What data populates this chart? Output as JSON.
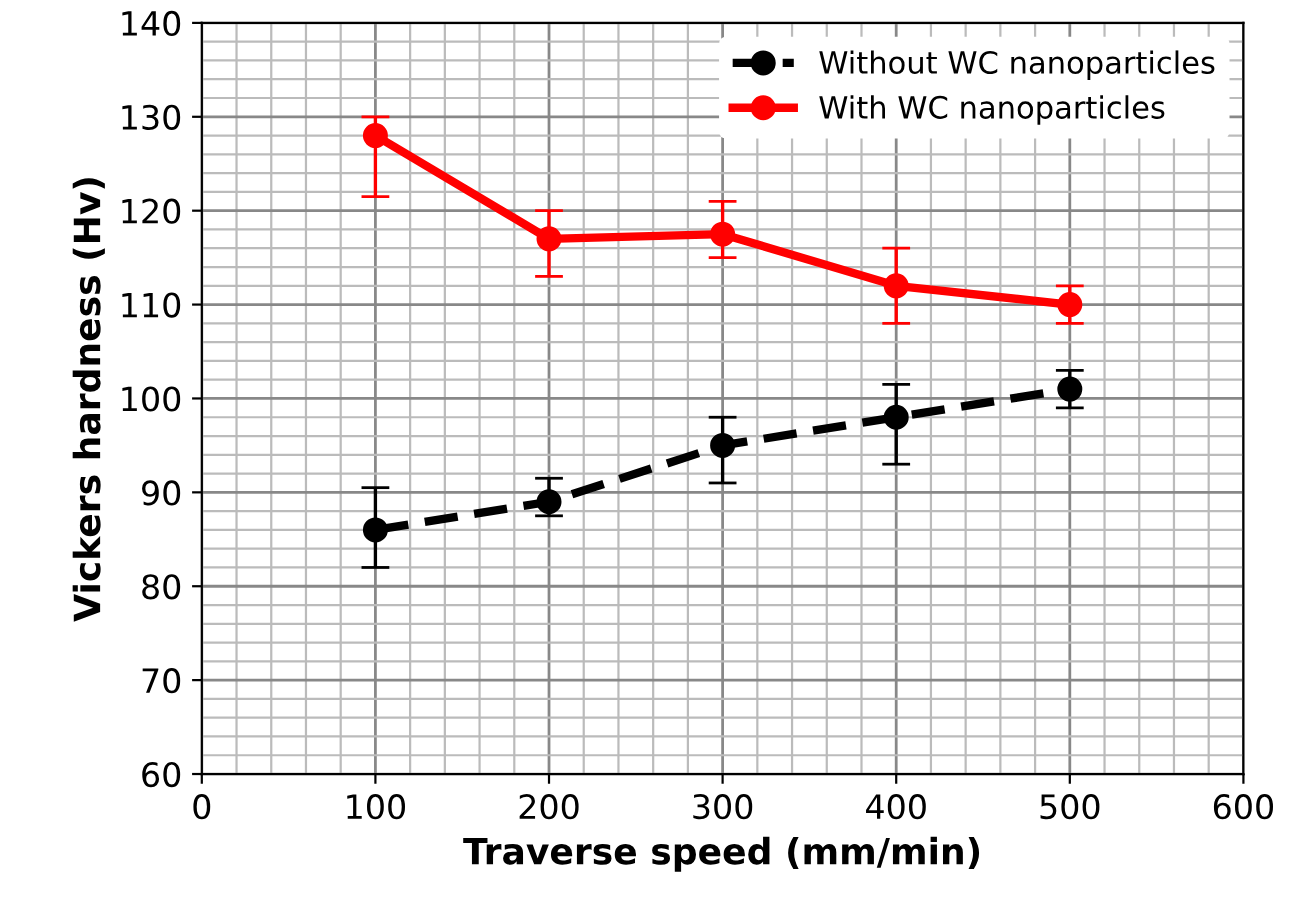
{
  "chart_data": {
    "type": "line",
    "xlabel": "Traverse speed (mm/min)",
    "ylabel": "Vickers hardness (Hv)",
    "x": [
      100,
      200,
      300,
      400,
      500
    ],
    "series": [
      {
        "name": "Without WC nanoparticles",
        "color": "#000000",
        "values": [
          86,
          89,
          95,
          98,
          101
        ],
        "errors": [
          [
            82,
            90.5
          ],
          [
            87.5,
            91.5
          ],
          [
            91,
            98
          ],
          [
            93,
            101.5
          ],
          [
            99,
            103
          ]
        ],
        "line_style": "dashed"
      },
      {
        "name": "With WC nanoparticles",
        "color": "#ff0000",
        "values": [
          128,
          117,
          117.5,
          112,
          110
        ],
        "errors": [
          [
            121.5,
            130
          ],
          [
            113,
            120
          ],
          [
            115,
            121
          ],
          [
            108,
            116
          ],
          [
            108,
            112
          ]
        ],
        "line_style": "solid"
      }
    ],
    "xlim": [
      0,
      600
    ],
    "xticks": [
      0,
      100,
      200,
      300,
      400,
      500,
      600
    ],
    "ylim": [
      60,
      140
    ],
    "yticks": [
      60,
      70,
      80,
      90,
      100,
      110,
      120,
      130,
      140
    ],
    "grid": true,
    "legend": "top right",
    "marker": "circle"
  }
}
